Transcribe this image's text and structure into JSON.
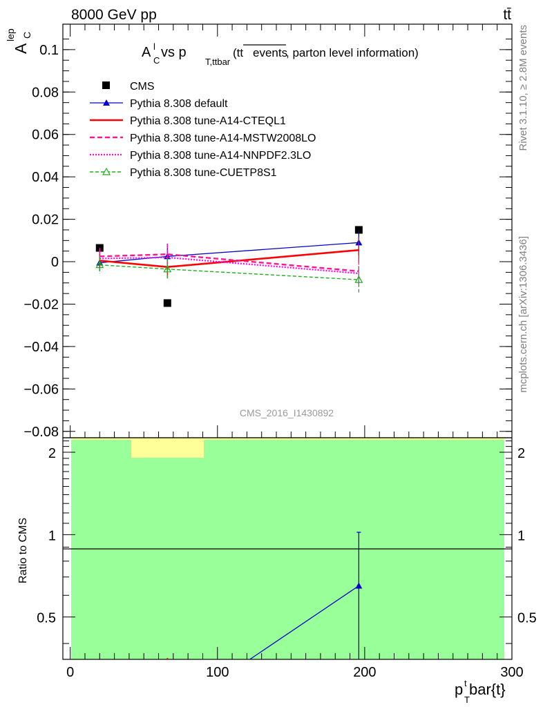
{
  "header": {
    "energy": "8000 GeV pp",
    "process": "tt̄",
    "rivet": "Rivet 3.1.10, ≥ 2.8M events",
    "mcplots": "mcplots.cern.ch [arXiv:1306.3436]",
    "analysis": "CMS_2016_I1430892"
  },
  "title": {
    "prefix": "A",
    "prefix_sup": "l",
    "prefix_sub": "C",
    "middle": " vs p",
    "middle_sub": "T,ttbar",
    "note_open": "(tt",
    "note_over": "events",
    "note_rest": ", parton level information)"
  },
  "ylabel_top": {
    "main": "A",
    "sup": "lep",
    "sub": "C"
  },
  "ylabel_bottom": "Ratio to CMS",
  "xlabel": {
    "main": "p",
    "sup": "t",
    "sub": "T",
    "rest": "bar{t}"
  },
  "colors": {
    "cms": "#000000",
    "default": "#0000cc",
    "cteql1": "#ff0000",
    "mstw": "#ff1493",
    "nnpdf": "#ff00ff",
    "cuetp8s1": "#22aa22",
    "band_green": "#99ff99",
    "band_yellow": "#ffff99"
  },
  "chart_data": [
    {
      "type": "line",
      "panel": "main",
      "x_range": [
        -5,
        300
      ],
      "ylim": [
        -0.083,
        0.112
      ],
      "y_ticks": [
        -0.08,
        -0.06,
        -0.04,
        -0.02,
        0,
        0.02,
        0.04,
        0.06,
        0.08,
        0.1
      ],
      "y_tick_labels": [
        "−0.08",
        "−0.06",
        "−0.04",
        "−0.02",
        "0",
        "0.02",
        "0.04",
        "0.06",
        "0.08",
        "0.1"
      ],
      "x": [
        20,
        66,
        196
      ],
      "series": [
        {
          "name": "CMS",
          "style": "square",
          "color": "cms",
          "values": [
            0.0065,
            -0.0195,
            0.015
          ]
        },
        {
          "name": "Pythia 8.308 default",
          "style": "triangle",
          "color": "default",
          "values": [
            -0.0005,
            0.0025,
            0.009
          ],
          "errors": [
            0.004,
            0.006,
            0.006
          ]
        },
        {
          "name": "Pythia 8.308 tune-A14-CTEQL1",
          "style": "solid",
          "color": "cteql1",
          "values": [
            0.0005,
            -0.0025,
            0.0055
          ],
          "errors": [
            0.004,
            0.005,
            0.006
          ]
        },
        {
          "name": "Pythia 8.308 tune-A14-MSTW2008LO",
          "style": "dashed",
          "color": "mstw",
          "values": [
            0.0025,
            0.0035,
            -0.0045
          ],
          "errors": [
            0.004,
            0.005,
            0.006
          ]
        },
        {
          "name": "Pythia 8.308 tune-A14-NNPDF2.3LO",
          "style": "dotted",
          "color": "nnpdf",
          "values": [
            0.0015,
            0.002,
            -0.0055
          ],
          "errors": [
            0.004,
            0.005,
            0.006
          ]
        },
        {
          "name": "Pythia 8.308 tune-CUETP8S1",
          "style": "dashed-triangle",
          "color": "cuetp8s1",
          "values": [
            -0.0015,
            -0.0035,
            -0.0085
          ],
          "errors": [
            0.004,
            0.005,
            0.006
          ]
        }
      ]
    },
    {
      "type": "line",
      "panel": "ratio",
      "x_range": [
        -5,
        300
      ],
      "ylim": [
        0.35,
        2.26
      ],
      "y_ticks": [
        0.5,
        1,
        2
      ],
      "y_tick_labels": [
        "0.5",
        "1",
        "2"
      ],
      "x_ticks": [
        0,
        100,
        200,
        300
      ],
      "x_tick_labels": [
        "0",
        "100",
        "200",
        "300"
      ],
      "series": [
        {
          "name": "Pythia 8.308 default",
          "color": "default",
          "x": [
            122,
            196
          ],
          "values": [
            0.33,
            0.65
          ],
          "errors": [
            0,
            0.37
          ]
        }
      ]
    }
  ]
}
